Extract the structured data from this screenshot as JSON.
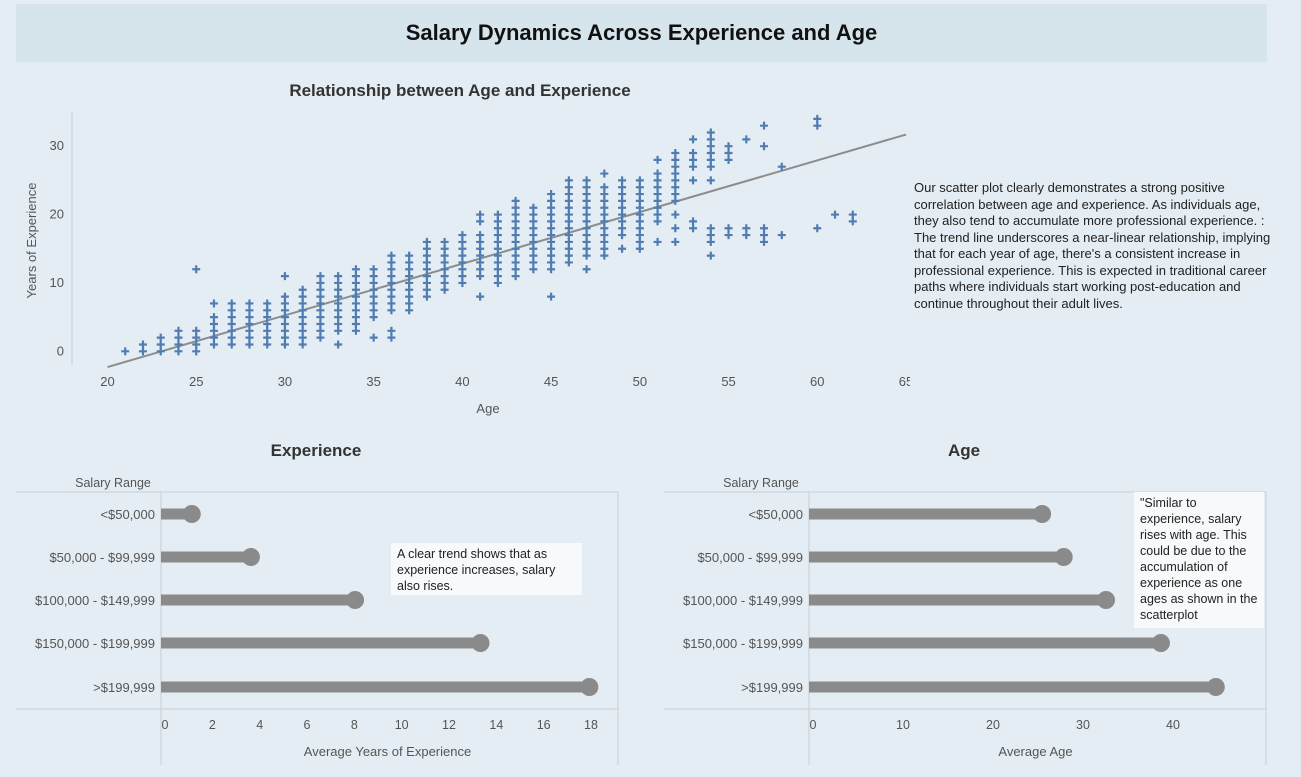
{
  "dashboard": {
    "title": "Salary Dynamics Across Experience and Age"
  },
  "notes": {
    "scatter": "Our scatter plot clearly demonstrates a strong positive correlation between age and experience. As individuals age, they also tend to accumulate more professional experience. : The trend line underscores a near-linear relationship, implying that for each year of age, there's a consistent increase in professional experience. This is expected in traditional career paths where individuals start working post-education and continue throughout their adult lives.",
    "experience": "A clear trend shows that as experience increases, salary also rises.",
    "age": "\"Similar to experience, salary rises with age. This could be due to the accumulation of experience as one ages as shown in the scatterplot"
  },
  "colors": {
    "background": "#e4edf3",
    "title_band": "#d6e4ec",
    "marker": "#4f7db3",
    "trend": "#8c8c8c",
    "lollipop": "#8a8a8a",
    "axis": "#c8d0d6"
  },
  "chart_data": [
    {
      "type": "scatter",
      "title": "Relationship between Age and Experience",
      "xlabel": "Age",
      "ylabel": "Years of Experience",
      "xlim": [
        18,
        65
      ],
      "ylim": [
        -2,
        35
      ],
      "x_ticks": [
        20,
        25,
        30,
        35,
        40,
        45,
        50,
        55,
        60,
        65
      ],
      "y_ticks": [
        0,
        10,
        20,
        30
      ],
      "marker": "plus",
      "trend_line": {
        "x": [
          20,
          65
        ],
        "y": [
          -2.3,
          31.7
        ]
      },
      "columns": [
        {
          "x": 21,
          "y": [
            0
          ]
        },
        {
          "x": 22,
          "y": [
            0,
            1
          ]
        },
        {
          "x": 23,
          "y": [
            0,
            1,
            2
          ]
        },
        {
          "x": 24,
          "y": [
            0,
            1,
            2,
            3
          ]
        },
        {
          "x": 25,
          "y": [
            0,
            1,
            2,
            3,
            12
          ]
        },
        {
          "x": 26,
          "y": [
            1,
            2,
            3,
            4,
            5,
            7
          ]
        },
        {
          "x": 27,
          "y": [
            1,
            2,
            3,
            4,
            5,
            6,
            7
          ]
        },
        {
          "x": 28,
          "y": [
            1,
            2,
            3,
            4,
            5,
            6,
            7
          ]
        },
        {
          "x": 29,
          "y": [
            1,
            2,
            3,
            4,
            5,
            6,
            7
          ]
        },
        {
          "x": 30,
          "y": [
            1,
            2,
            3,
            4,
            5,
            6,
            7,
            8,
            11
          ]
        },
        {
          "x": 31,
          "y": [
            1,
            2,
            3,
            4,
            5,
            6,
            7,
            8,
            9
          ]
        },
        {
          "x": 32,
          "y": [
            2,
            3,
            4,
            5,
            6,
            7,
            8,
            9,
            10,
            11
          ]
        },
        {
          "x": 33,
          "y": [
            1,
            3,
            4,
            5,
            6,
            7,
            8,
            9,
            10,
            11
          ]
        },
        {
          "x": 34,
          "y": [
            3,
            4,
            5,
            6,
            7,
            8,
            9,
            10,
            11,
            12
          ]
        },
        {
          "x": 35,
          "y": [
            2,
            5,
            6,
            7,
            8,
            9,
            10,
            11,
            12
          ]
        },
        {
          "x": 36,
          "y": [
            2,
            3,
            6,
            7,
            8,
            9,
            10,
            11,
            12,
            13,
            14
          ]
        },
        {
          "x": 37,
          "y": [
            6,
            7,
            8,
            9,
            10,
            11,
            12,
            13,
            14
          ]
        },
        {
          "x": 38,
          "y": [
            8,
            9,
            10,
            11,
            12,
            13,
            14,
            15,
            16
          ]
        },
        {
          "x": 39,
          "y": [
            9,
            10,
            11,
            12,
            13,
            14,
            15,
            16
          ]
        },
        {
          "x": 40,
          "y": [
            10,
            11,
            12,
            13,
            14,
            15,
            16,
            17
          ]
        },
        {
          "x": 41,
          "y": [
            8,
            11,
            12,
            13,
            14,
            15,
            16,
            17,
            19,
            20
          ]
        },
        {
          "x": 42,
          "y": [
            10,
            11,
            12,
            13,
            14,
            15,
            16,
            17,
            18,
            19,
            20
          ]
        },
        {
          "x": 43,
          "y": [
            11,
            12,
            13,
            14,
            15,
            16,
            17,
            18,
            19,
            20,
            21,
            22
          ]
        },
        {
          "x": 44,
          "y": [
            12,
            13,
            14,
            15,
            16,
            17,
            18,
            19,
            20,
            21
          ]
        },
        {
          "x": 45,
          "y": [
            8,
            12,
            13,
            14,
            15,
            16,
            17,
            18,
            19,
            20,
            21,
            22,
            23
          ]
        },
        {
          "x": 46,
          "y": [
            13,
            14,
            15,
            16,
            17,
            18,
            19,
            20,
            21,
            22,
            23,
            24,
            25
          ]
        },
        {
          "x": 47,
          "y": [
            12,
            14,
            15,
            16,
            17,
            18,
            19,
            20,
            21,
            22,
            23,
            24,
            25
          ]
        },
        {
          "x": 48,
          "y": [
            14,
            15,
            16,
            17,
            18,
            19,
            20,
            21,
            22,
            23,
            24,
            26
          ]
        },
        {
          "x": 49,
          "y": [
            15,
            17,
            18,
            19,
            20,
            21,
            22,
            23,
            24,
            25
          ]
        },
        {
          "x": 50,
          "y": [
            15,
            16,
            17,
            18,
            19,
            20,
            21,
            22,
            23,
            24,
            25
          ]
        },
        {
          "x": 51,
          "y": [
            16,
            19,
            20,
            21,
            22,
            23,
            24,
            25,
            26,
            28
          ]
        },
        {
          "x": 52,
          "y": [
            16,
            18,
            20,
            22,
            23,
            24,
            25,
            26,
            27,
            28,
            29
          ]
        },
        {
          "x": 53,
          "y": [
            18,
            19,
            25,
            27,
            28,
            29,
            31
          ]
        },
        {
          "x": 54,
          "y": [
            14,
            16,
            17,
            18,
            25,
            27,
            28,
            29,
            30,
            31,
            32
          ]
        },
        {
          "x": 55,
          "y": [
            17,
            18,
            28,
            29,
            30
          ]
        },
        {
          "x": 56,
          "y": [
            17,
            18,
            31
          ]
        },
        {
          "x": 57,
          "y": [
            16,
            17,
            18,
            30,
            33
          ]
        },
        {
          "x": 58,
          "y": [
            17,
            27
          ]
        },
        {
          "x": 60,
          "y": [
            18,
            33,
            34
          ]
        },
        {
          "x": 61,
          "y": [
            20
          ]
        },
        {
          "x": 62,
          "y": [
            19,
            20
          ]
        }
      ]
    },
    {
      "type": "bar",
      "style": "lollipop",
      "title": "Experience",
      "category_axis_title": "Salary Range",
      "xlabel": "Average Years of Experience",
      "xlim": [
        0,
        19
      ],
      "x_ticks": [
        0,
        2,
        4,
        6,
        8,
        10,
        12,
        14,
        16,
        18
      ],
      "categories": [
        "<$50,000",
        "$50,000 - $99,999",
        "$100,000 - $149,999",
        "$150,000 - $199,999",
        ">$199,999"
      ],
      "values": [
        1.3,
        3.8,
        8.2,
        13.5,
        18.1
      ]
    },
    {
      "type": "bar",
      "style": "lollipop",
      "title": "Age",
      "category_axis_title": "Salary Range",
      "xlabel": "Average Age",
      "xlim": [
        0,
        48
      ],
      "x_ticks": [
        0,
        10,
        20,
        30,
        40
      ],
      "categories": [
        "<$50,000",
        "$50,000 - $99,999",
        "$100,000 - $149,999",
        "$150,000 - $199,999",
        ">$199,999"
      ],
      "values": [
        25.9,
        28.3,
        33.0,
        39.1,
        45.2
      ]
    }
  ]
}
